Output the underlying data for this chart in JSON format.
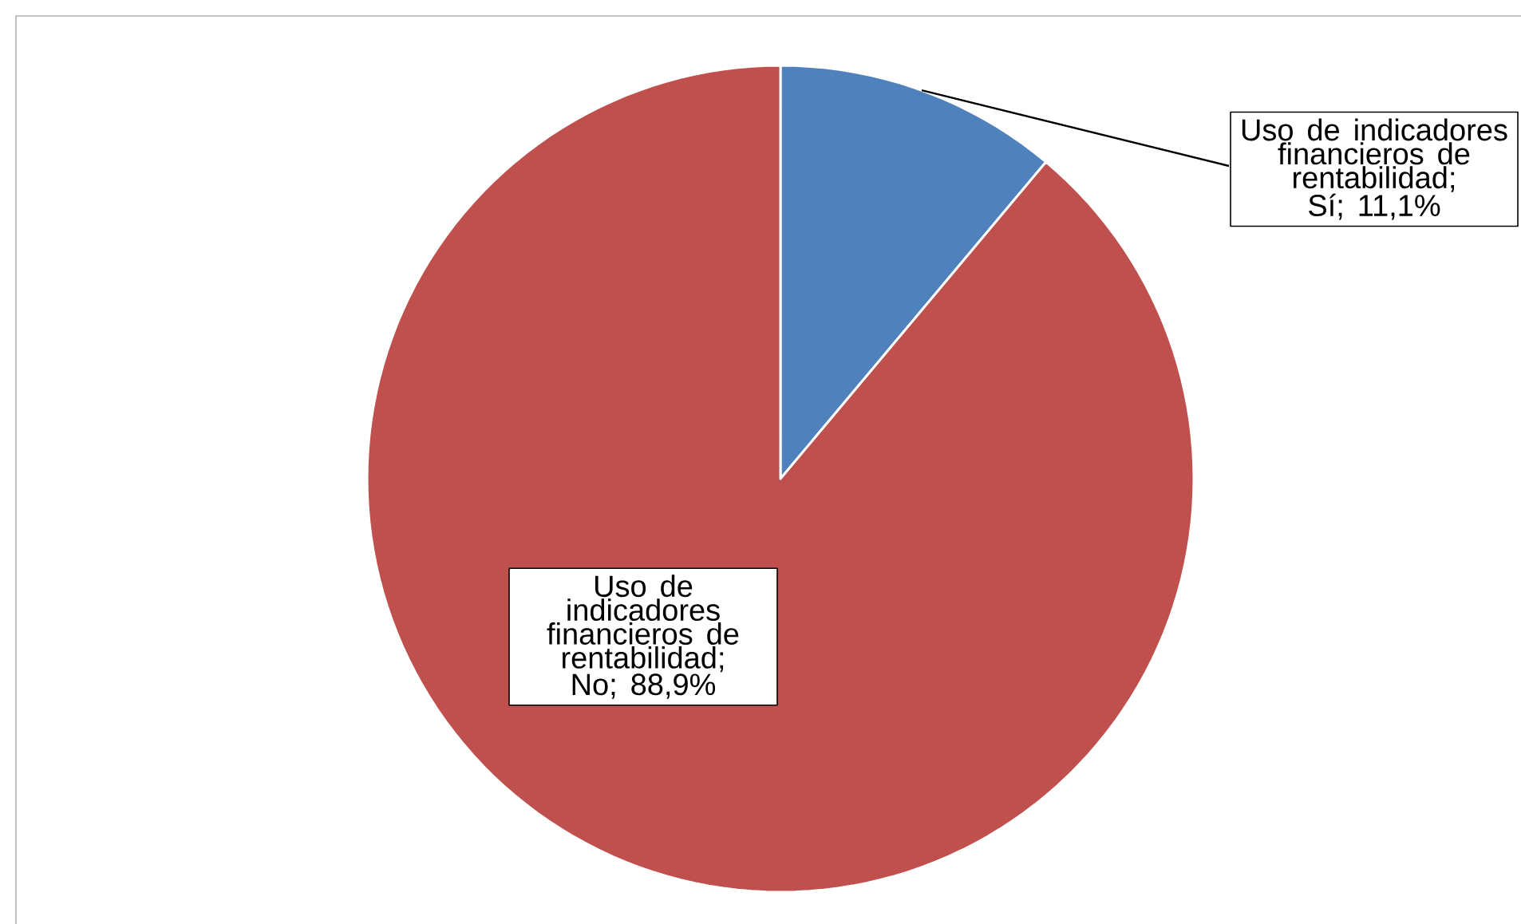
{
  "chart_data": {
    "type": "pie",
    "categories": [
      "Uso de indicadores financieros de rentabilidad; Sí; 11,1%",
      "Uso de indicadores financieros de rentabilidad; No; 88,9%"
    ],
    "values": [
      11.1,
      88.9
    ],
    "colors": [
      "#4f81bd",
      "#c0504d"
    ]
  }
}
